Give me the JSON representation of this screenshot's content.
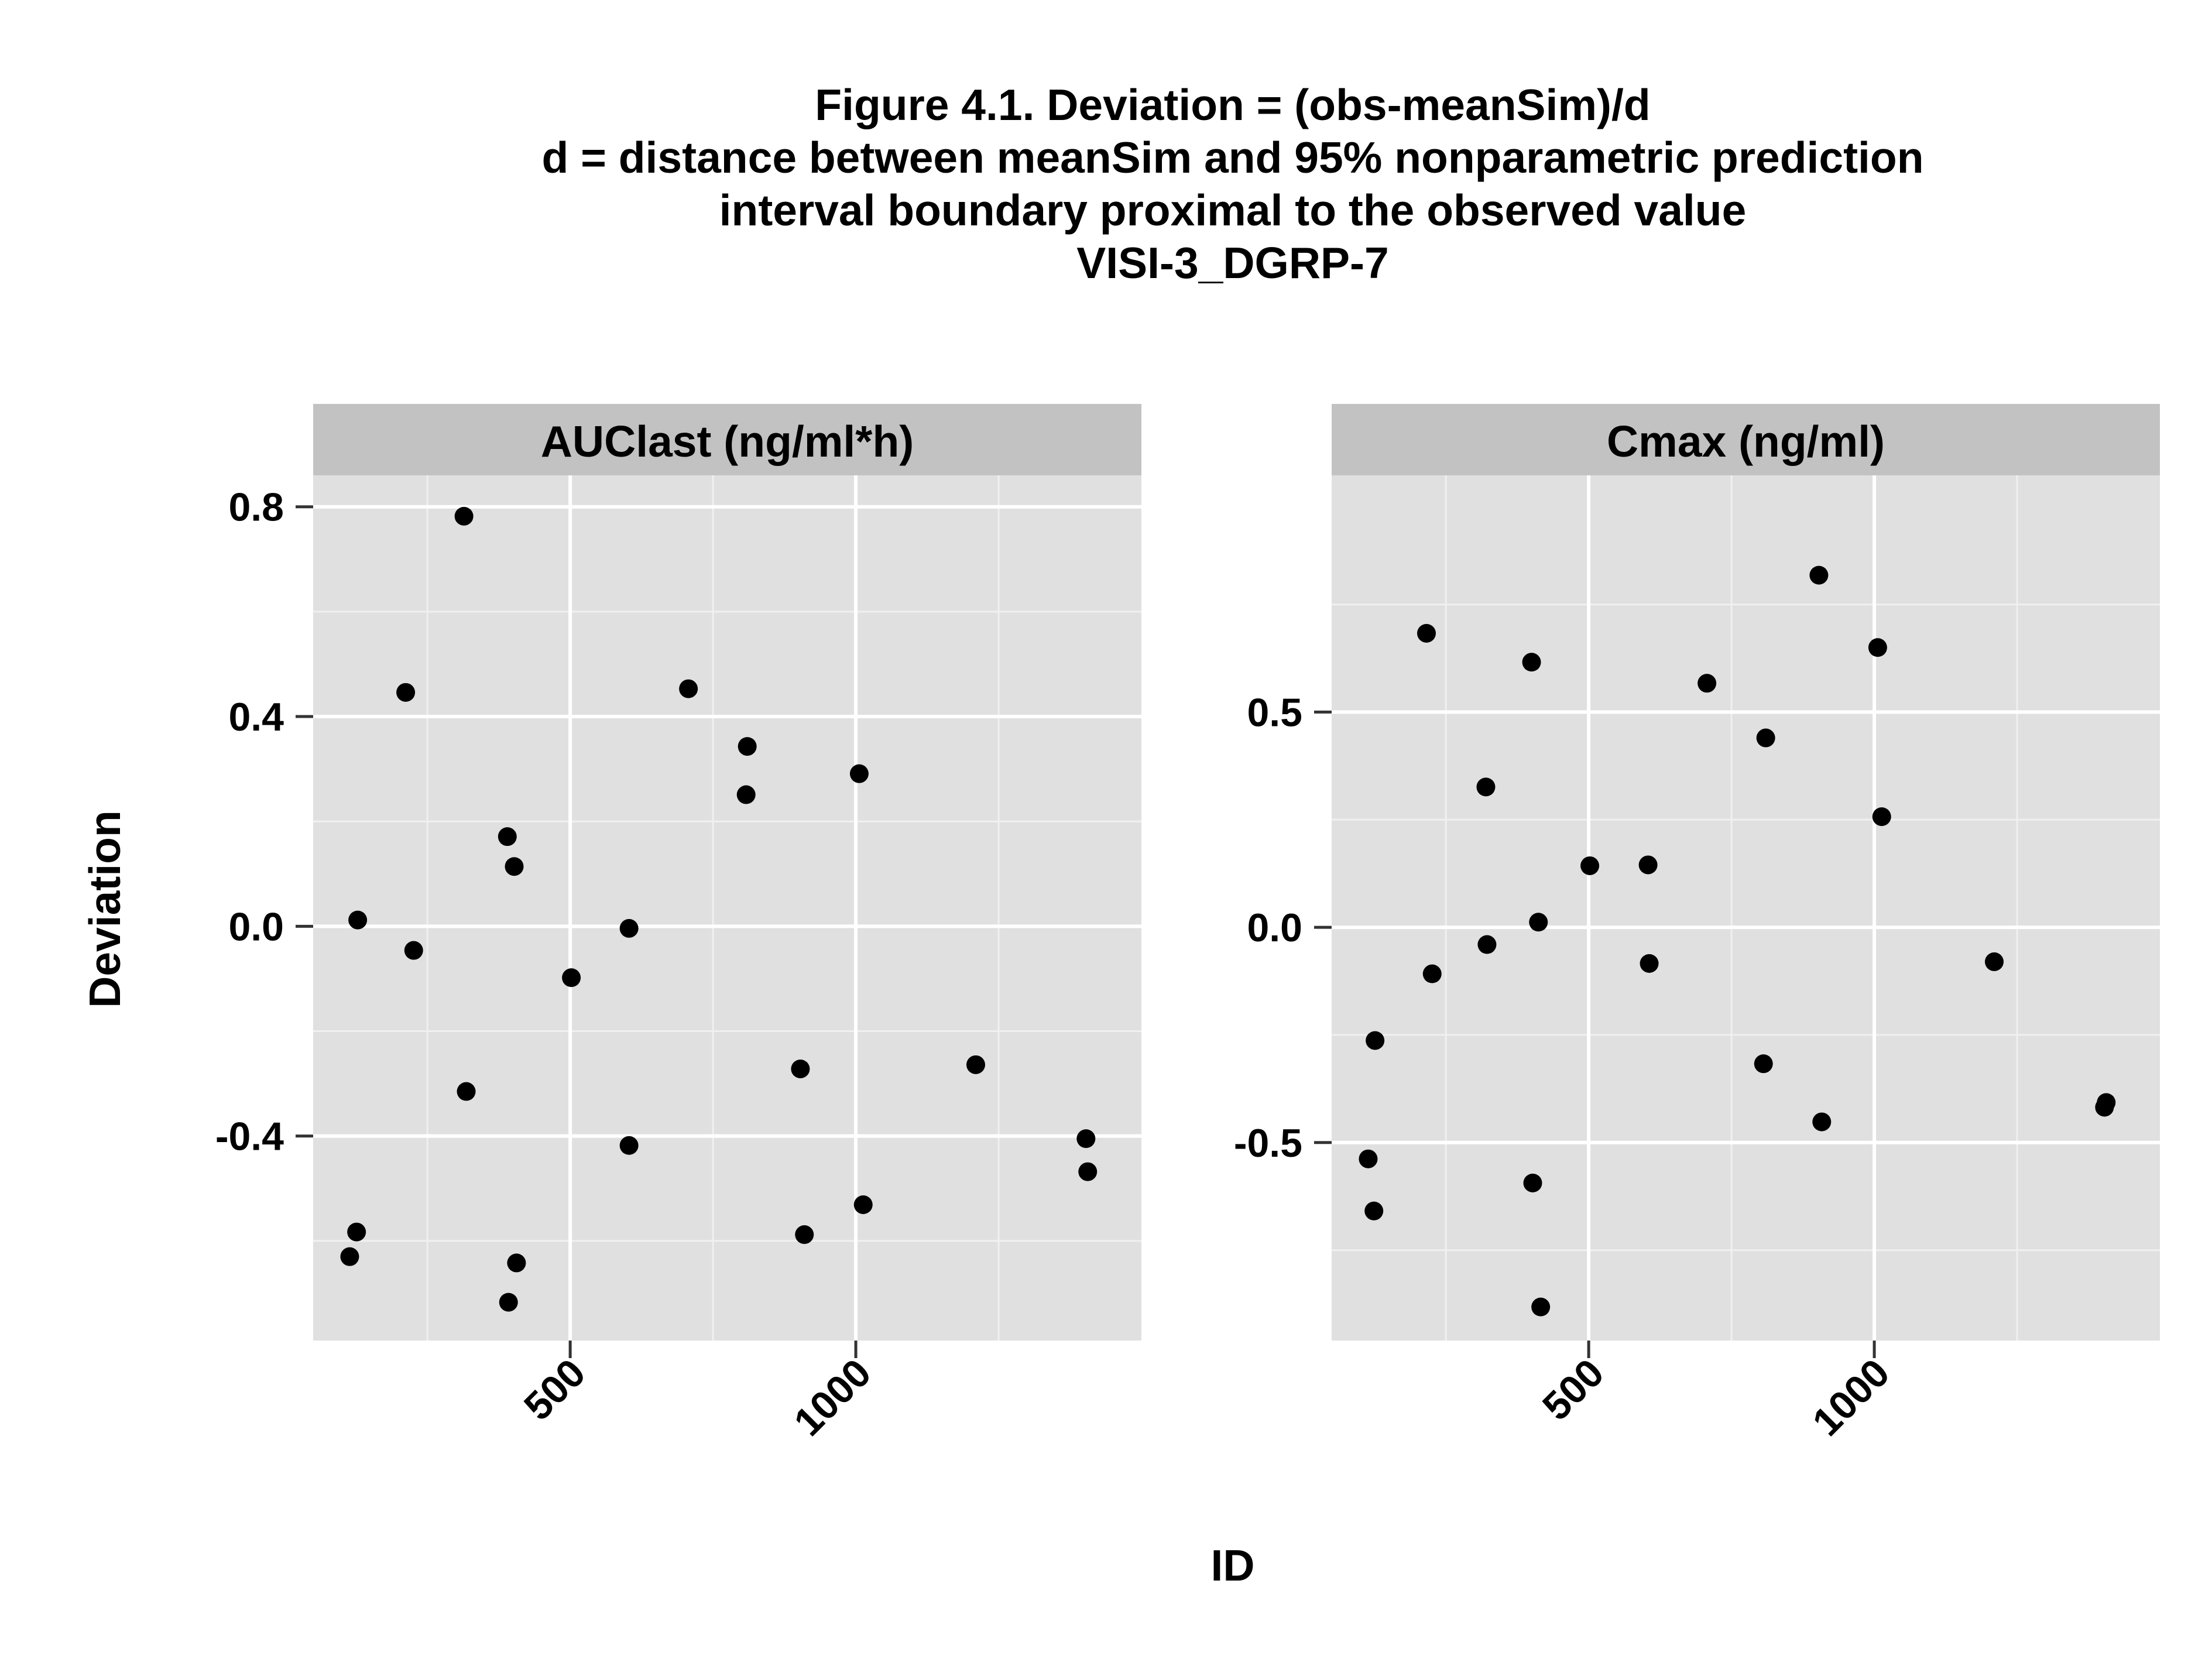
{
  "title_lines": [
    "Figure 4.1. Deviation = (obs-meanSim)/d",
    "d = distance between meanSim and 95% nonparametric prediction",
    "interval boundary proximal to the observed value",
    "VISI-3_DGRP-7"
  ],
  "chart_data": {
    "type": "scatter",
    "xlabel": "ID",
    "ylabel": "Deviation",
    "grid": true,
    "facets": [
      {
        "name": "AUClast (ng/ml*h)",
        "xlim": [
          50,
          1500
        ],
        "ylim": [
          -0.79,
          0.86
        ],
        "x_ticks": [
          500,
          1000
        ],
        "x_tick_labels": [
          "500",
          "1000"
        ],
        "y_ticks": [
          -0.4,
          0.0,
          0.4,
          0.8
        ],
        "y_tick_labels": [
          "-0.4",
          "0.0",
          "0.4",
          "0.8"
        ],
        "points": [
          {
            "x": 114,
            "y": -0.63
          },
          {
            "x": 126,
            "y": -0.583
          },
          {
            "x": 128,
            "y": 0.012
          },
          {
            "x": 212,
            "y": 0.446
          },
          {
            "x": 226,
            "y": -0.046
          },
          {
            "x": 314,
            "y": 0.782
          },
          {
            "x": 318,
            "y": -0.315
          },
          {
            "x": 390,
            "y": 0.171
          },
          {
            "x": 392,
            "y": -0.717
          },
          {
            "x": 402,
            "y": 0.114
          },
          {
            "x": 406,
            "y": -0.642
          },
          {
            "x": 502,
            "y": -0.098
          },
          {
            "x": 603,
            "y": -0.004
          },
          {
            "x": 603,
            "y": -0.418
          },
          {
            "x": 707,
            "y": 0.453
          },
          {
            "x": 808,
            "y": 0.251
          },
          {
            "x": 810,
            "y": 0.343
          },
          {
            "x": 903,
            "y": -0.272
          },
          {
            "x": 910,
            "y": -0.588
          },
          {
            "x": 1006,
            "y": 0.291
          },
          {
            "x": 1013,
            "y": -0.531
          },
          {
            "x": 1210,
            "y": -0.264
          },
          {
            "x": 1403,
            "y": -0.405
          },
          {
            "x": 1406,
            "y": -0.468
          }
        ]
      },
      {
        "name": "Cmax (ng/ml)",
        "xlim": [
          50,
          1500
        ],
        "ylim": [
          -0.96,
          1.05
        ],
        "x_ticks": [
          500,
          1000
        ],
        "x_tick_labels": [
          "500",
          "1000"
        ],
        "y_ticks": [
          -0.5,
          0.0,
          0.5
        ],
        "y_tick_labels": [
          "-0.5",
          "0.0",
          "0.5"
        ],
        "points": [
          {
            "x": 114,
            "y": -0.538
          },
          {
            "x": 124,
            "y": -0.659
          },
          {
            "x": 126,
            "y": -0.263
          },
          {
            "x": 216,
            "y": 0.683
          },
          {
            "x": 226,
            "y": -0.108
          },
          {
            "x": 320,
            "y": 0.326
          },
          {
            "x": 322,
            "y": -0.04
          },
          {
            "x": 400,
            "y": 0.616
          },
          {
            "x": 402,
            "y": -0.594
          },
          {
            "x": 412,
            "y": 0.012
          },
          {
            "x": 416,
            "y": -0.882
          },
          {
            "x": 502,
            "y": 0.143
          },
          {
            "x": 604,
            "y": 0.145
          },
          {
            "x": 606,
            "y": -0.084
          },
          {
            "x": 707,
            "y": 0.567
          },
          {
            "x": 806,
            "y": -0.317
          },
          {
            "x": 810,
            "y": 0.44
          },
          {
            "x": 903,
            "y": 0.818
          },
          {
            "x": 908,
            "y": -0.452
          },
          {
            "x": 1006,
            "y": 0.65
          },
          {
            "x": 1013,
            "y": 0.257
          },
          {
            "x": 1210,
            "y": -0.08
          },
          {
            "x": 1403,
            "y": -0.418
          },
          {
            "x": 1406,
            "y": -0.407
          }
        ]
      }
    ]
  },
  "colors": {
    "panel_bg": "#e0e0e0",
    "strip_bg": "#c2c2c2",
    "grid_major": "#ffffff",
    "grid_minor": "#f0f0f0",
    "point": "#000000",
    "tick": "#333333"
  }
}
